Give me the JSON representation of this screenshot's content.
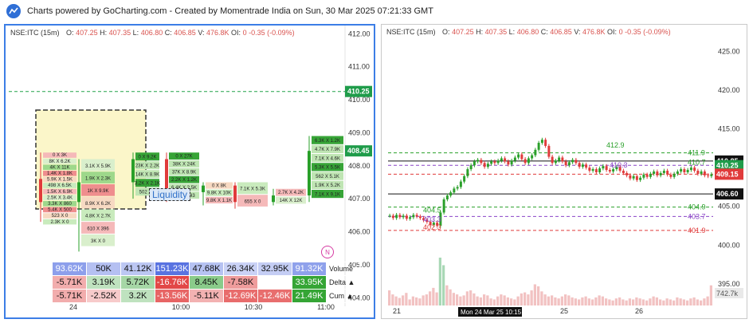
{
  "header": {
    "credit": "Charts powered by GoCharting.com - Created by Momentrade India on Sun, 30 Mar 2025 07:21:33 GMT"
  },
  "left_chart": {
    "symbol": "NSE:ITC (15m)",
    "o": "407.25",
    "h": "407.35",
    "l": "406.80",
    "c": "406.85",
    "vol": "476.8K",
    "oi": "0",
    "chg": "-0.35",
    "chg_pct": "(-0.09%)",
    "labels": {
      "o": "O:",
      "h": "H:",
      "l": "L:",
      "c": "C:",
      "v": "V:",
      "oi": "OI:"
    },
    "liquidity_label": "Liquidity",
    "n_badge": "N",
    "price_tag_line": "410.25",
    "price_tag_last": "408.45",
    "stats_labels": [
      "Volume",
      "Delta ▲",
      "Cum ▲"
    ],
    "stats": {
      "volume": [
        "93.62K",
        "50K",
        "41.12K",
        "151.23K",
        "47.68K",
        "26.34K",
        "32.95K",
        "91.32K"
      ],
      "delta": [
        "-5.71K",
        "3.19K",
        "5.72K",
        "-16.76K",
        "8.45K",
        "-7.58K",
        "229",
        "33.95K"
      ],
      "cum": [
        "-5.71K",
        "-2.52K",
        "3.2K",
        "-13.56K",
        "-5.11K",
        "-12.69K",
        "-12.46K",
        "21.49K"
      ]
    },
    "colors": {
      "accent": "#3c7ee6",
      "green": "#2aa02a",
      "red": "#e03b3b",
      "line": "#22a34a"
    }
  },
  "right_chart": {
    "symbol": "NSE:ITC (15m)",
    "o": "407.25",
    "h": "407.35",
    "l": "406.80",
    "c": "406.85",
    "vol": "476.8K",
    "oi": "0",
    "chg": "-0.35",
    "chg_pct": "(-0.09%)",
    "crosshair_label": "Mon 24 Mar 25 10:15",
    "price_tags": [
      {
        "text": "410.85",
        "color": "#111111"
      },
      {
        "text": "410.25",
        "color": "#1f9c4a"
      },
      {
        "text": "409.15",
        "color": "#e03b3b"
      },
      {
        "text": "406.60",
        "color": "#111111"
      },
      {
        "text": "742.7k",
        "color": "#555555"
      }
    ],
    "level_labels": [
      {
        "text": "412.9",
        "color": "#2aa02a"
      },
      {
        "text": "411.9",
        "color": "#2aa02a"
      },
      {
        "text": "410.3",
        "color": "#8a44c7"
      },
      {
        "text": "410.7",
        "color": "#2aa02a"
      },
      {
        "text": "404.5",
        "color": "#2aa02a"
      },
      {
        "text": "403.3",
        "color": "#8a44c7"
      },
      {
        "text": "402.3",
        "color": "#e03b3b"
      },
      {
        "text": "404.9",
        "color": "#2aa02a"
      },
      {
        "text": "403.7",
        "color": "#8a44c7"
      },
      {
        "text": "401.9",
        "color": "#e03b3b"
      }
    ]
  },
  "chart_data": [
    {
      "type": "footprint",
      "title": "NSE:ITC (15m)",
      "y_ticks": [
        "412.00",
        "411.00",
        "410.00",
        "409.00",
        "408.00",
        "407.00",
        "406.00",
        "405.00",
        "404.00"
      ],
      "ylim": [
        403.5,
        412.2
      ],
      "x_tick_labels": [
        "24",
        "10:00",
        "10:30",
        "11:00"
      ],
      "candles": [
        {
          "o": 407.6,
          "h": 408.4,
          "l": 406.3,
          "c": 406.9
        },
        {
          "o": 406.9,
          "h": 408.2,
          "l": 405.4,
          "c": 407.5
        },
        {
          "o": 407.5,
          "h": 408.4,
          "l": 407.0,
          "c": 408.2
        },
        {
          "o": 408.2,
          "h": 408.4,
          "l": 406.9,
          "c": 407.2
        },
        {
          "o": 407.2,
          "h": 407.5,
          "l": 406.8,
          "c": 407.4
        },
        {
          "o": 407.4,
          "h": 407.5,
          "l": 406.7,
          "c": 406.9
        },
        {
          "o": 406.9,
          "h": 407.3,
          "l": 406.8,
          "c": 407.1
        },
        {
          "o": 407.1,
          "h": 408.9,
          "l": 406.9,
          "c": 408.45
        }
      ],
      "footprint_rows": [
        [
          "0 X 3K",
          "8K X 6.2K",
          "4K X 11K",
          "1.4K X 1.8K",
          "5.9K X 1.5K",
          "498 X 6.5K",
          "1.5K X 6.9K",
          "2.5K X 3.4K",
          "3.3K X 860",
          "5.4K X 500",
          "523 X 0",
          "2.3K X 0"
        ],
        [
          "3.1K X 5.9K",
          "1.9K X 2.3K",
          "1K X 9.9K",
          "8.9K X 6.2K",
          "4.8K X 2.7K",
          "610 X 396",
          "3K X 0"
        ],
        [
          "0 X 9.2K",
          "23K X 2.2K",
          "14K X 8.9K",
          "3.2K X 2.1K",
          "502 X 0"
        ],
        [
          "0 X 27K",
          "38K X 24K",
          "37K X 8.9K",
          "2.2K X 1.2K",
          "6.4K X 2.5K",
          "498 X 143"
        ],
        [
          "0 X 8K",
          "9.8K X 10K",
          "9.8K X 1.1K"
        ],
        [
          "7.1K X 5.3K",
          "655 X 0"
        ],
        [
          "2.7K X 4.2K",
          "14K X 12K"
        ],
        [
          "6.3K X 1.2K",
          "4.7K X 7.9K",
          "7.1K X 4.6K",
          "5.3K X 5.5K",
          "562 X 5.1K",
          "1.9K X 5.2K",
          "7.1K X 9.1K"
        ]
      ]
    },
    {
      "type": "candlestick",
      "title": "NSE:ITC (15m)",
      "y_ticks": [
        "425.00",
        "420.00",
        "415.00",
        "410.00",
        "405.00",
        "400.00",
        "395.00"
      ],
      "ylim": [
        392,
        427
      ],
      "x_tick_labels": [
        "21",
        "25",
        "26"
      ],
      "closes": [
        403.8,
        403.5,
        403.9,
        403.6,
        403.8,
        403.4,
        403.6,
        403.9,
        403.7,
        403.5,
        403.2,
        403.0,
        402.6,
        402.9,
        402.5,
        404.2,
        405.9,
        406.4,
        406.8,
        407.3,
        407.5,
        408.2,
        408.9,
        409.8,
        410.3,
        410.8,
        411.0,
        410.6,
        410.1,
        410.5,
        410.8,
        410.6,
        410.9,
        411.2,
        410.8,
        410.4,
        410.9,
        411.3,
        411.7,
        411.1,
        410.6,
        411.2,
        411.6,
        412.3,
        413.2,
        413.6,
        412.8,
        411.4,
        410.6,
        410.9,
        411.3,
        410.8,
        410.3,
        410.7,
        411.0,
        410.6,
        410.1,
        410.4,
        410.0,
        409.6,
        409.8,
        409.4,
        409.9,
        410.2,
        409.7,
        409.5,
        409.8,
        410.1,
        409.6,
        409.3,
        409.0,
        408.6,
        408.9,
        408.4,
        408.7,
        409.1,
        408.8,
        409.2,
        409.5,
        409.0,
        409.3,
        409.6,
        409.1,
        408.8,
        409.2,
        409.5,
        409.8,
        409.4,
        409.7,
        410.0,
        409.6,
        409.2,
        409.5,
        409.0,
        408.9,
        409.15
      ],
      "volumes": [
        30,
        22,
        18,
        15,
        20,
        25,
        12,
        18,
        16,
        14,
        20,
        22,
        28,
        35,
        26,
        95,
        80,
        40,
        32,
        25,
        22,
        18,
        20,
        28,
        30,
        24,
        18,
        16,
        22,
        20,
        14,
        12,
        18,
        22,
        20,
        16,
        14,
        12,
        18,
        24,
        26,
        22,
        30,
        42,
        38,
        28,
        22,
        18,
        20,
        16,
        14,
        18,
        22,
        20,
        16,
        14,
        12,
        16,
        18,
        14,
        12,
        16,
        20,
        18,
        14,
        12,
        10,
        14,
        16,
        12,
        10,
        14,
        12,
        16,
        14,
        12,
        10,
        14,
        18,
        16,
        12,
        10,
        14,
        12,
        10,
        16,
        14,
        12,
        10,
        14,
        16,
        12,
        10,
        14,
        18,
        40
      ],
      "volume_marker": "742.7k"
    }
  ]
}
